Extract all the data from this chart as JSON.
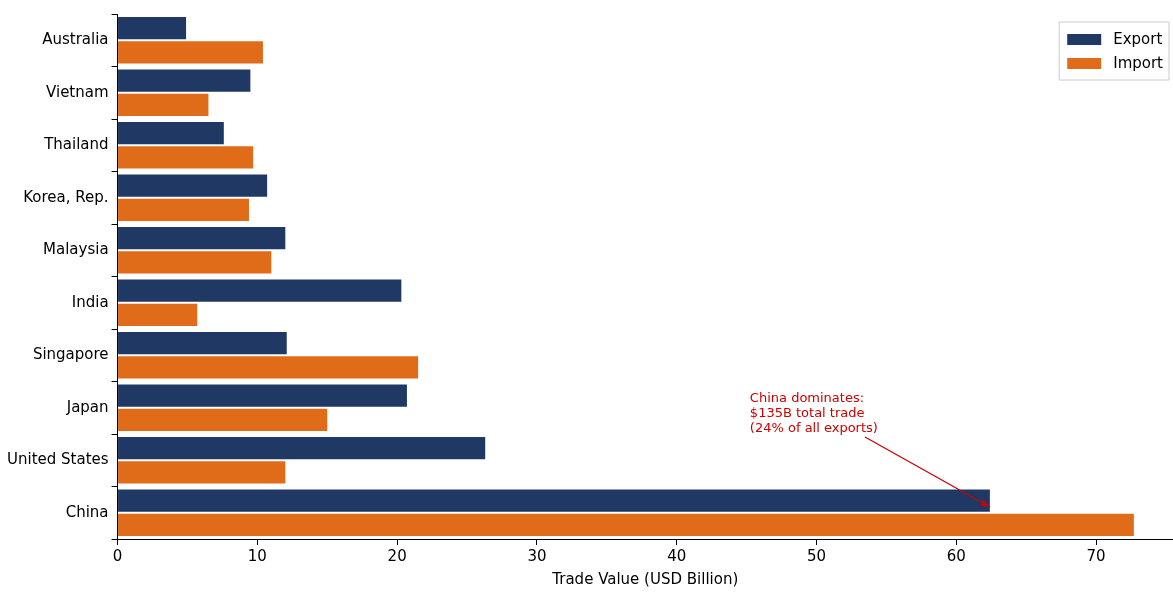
{
  "chart_data": {
    "type": "bar",
    "orientation": "horizontal",
    "xlabel": "Trade Value (USD Billion)",
    "categories": [
      "Australia",
      "Vietnam",
      "Thailand",
      "Korea, Rep.",
      "Malaysia",
      "India",
      "Singapore",
      "Japan",
      "United States",
      "China"
    ],
    "series": [
      {
        "name": "Export",
        "color": "#1f3864",
        "values": [
          4.9,
          9.5,
          7.6,
          10.7,
          12.0,
          20.3,
          12.1,
          20.7,
          26.3,
          62.4
        ]
      },
      {
        "name": "Import",
        "color": "#e06c1a",
        "values": [
          10.4,
          6.5,
          9.7,
          9.4,
          11.0,
          5.7,
          21.5,
          15.0,
          12.0,
          72.7
        ]
      }
    ],
    "xlim": [
      0,
      75.5
    ],
    "xticks": [
      0,
      10,
      20,
      30,
      40,
      50,
      60,
      70
    ],
    "legend": "top right",
    "annotations": [
      {
        "text": "China dominates:\n$135B total trade\n(24% of all exports)",
        "x": 62.4,
        "y": "China"
      }
    ]
  }
}
